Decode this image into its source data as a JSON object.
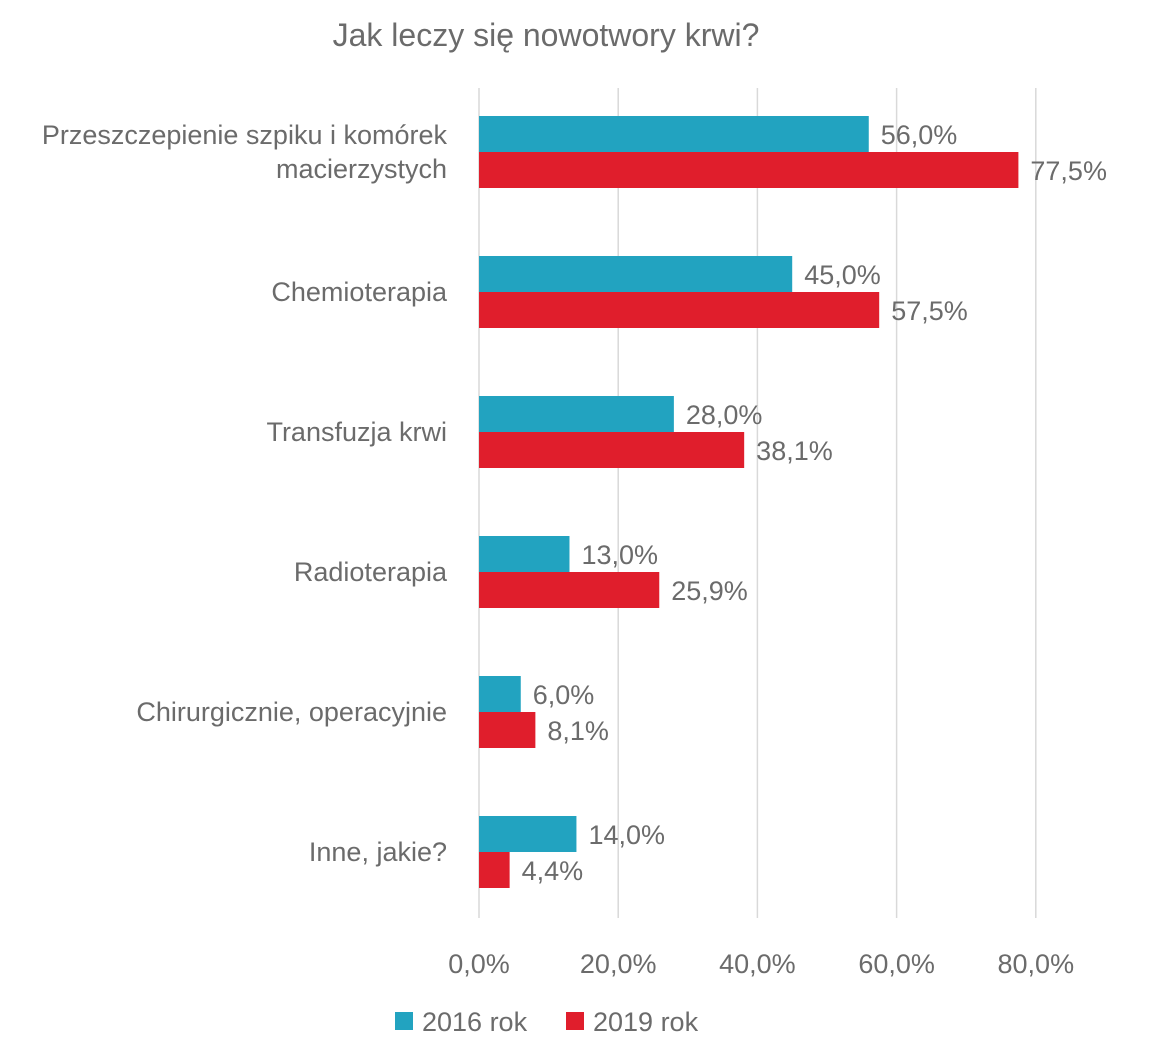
{
  "chart_data": {
    "type": "bar",
    "orientation": "horizontal",
    "title": "Jak leczy się nowotwory krwi?",
    "categories": [
      [
        "Przeszczepienie szpiku i komórek",
        "macierzystych"
      ],
      [
        "Chemioterapia"
      ],
      [
        "Transfuzja krwi"
      ],
      [
        "Radioterapia"
      ],
      [
        "Chirurgicznie, operacyjnie"
      ],
      [
        "Inne, jakie?"
      ]
    ],
    "series": [
      {
        "name": "2016 rok",
        "color": "#22a3c0",
        "values": [
          56.0,
          45.0,
          28.0,
          13.0,
          6.0,
          14.0
        ],
        "labels": [
          "56,0%",
          "45,0%",
          "28,0%",
          "13,0%",
          "6,0%",
          "14,0%"
        ]
      },
      {
        "name": "2019 rok",
        "color": "#e01e2c",
        "values": [
          77.5,
          57.5,
          38.1,
          25.9,
          8.1,
          4.4
        ],
        "labels": [
          "77,5%",
          "57,5%",
          "38,1%",
          "25,9%",
          "8,1%",
          "4,4%"
        ]
      }
    ],
    "xlim": [
      0,
      80
    ],
    "xticks": [
      0,
      20,
      40,
      60,
      80
    ],
    "xtick_labels": [
      "0,0%",
      "20,0%",
      "40,0%",
      "60,0%",
      "80,0%"
    ],
    "grid": true,
    "legend_position": "bottom"
  }
}
